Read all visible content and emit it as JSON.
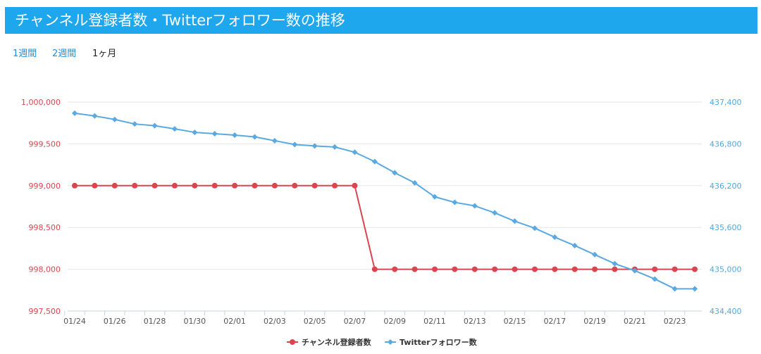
{
  "header": {
    "title": "チャンネル登録者数・Twitterフォロワー数の推移"
  },
  "range_tabs": [
    {
      "label": "1週間",
      "active": false
    },
    {
      "label": "2週間",
      "active": false
    },
    {
      "label": "1ヶ月",
      "active": true
    }
  ],
  "colors": {
    "header_bg": "#1fa7ee",
    "series_subscribers": "#d9464f",
    "series_followers": "#5aa9e0",
    "left_axis_text": "#d9464f",
    "right_axis_text": "#4fa9e3",
    "grid": "#e6e6e6",
    "active_tab": "#222222",
    "inactive_tab": "#1f8fe0"
  },
  "chart_data": {
    "type": "line",
    "x": [
      "01/24",
      "01/25",
      "01/26",
      "01/27",
      "01/28",
      "01/29",
      "01/30",
      "01/31",
      "02/01",
      "02/02",
      "02/03",
      "02/04",
      "02/05",
      "02/06",
      "02/07",
      "02/08",
      "02/09",
      "02/10",
      "02/11",
      "02/12",
      "02/13",
      "02/14",
      "02/15",
      "02/16",
      "02/17",
      "02/18",
      "02/19",
      "02/20",
      "02/21",
      "02/22",
      "02/23",
      "02/24"
    ],
    "x_tick_labels": [
      "01/24",
      "01/26",
      "01/28",
      "01/30",
      "02/01",
      "02/03",
      "02/05",
      "02/07",
      "02/09",
      "02/11",
      "02/13",
      "02/15",
      "02/17",
      "02/19",
      "02/21",
      "02/23"
    ],
    "series": [
      {
        "name": "チャンネル登録者数",
        "axis": "left",
        "values": [
          999000,
          999000,
          999000,
          999000,
          999000,
          999000,
          999000,
          999000,
          999000,
          999000,
          999000,
          999000,
          999000,
          999000,
          999000,
          998000,
          998000,
          998000,
          998000,
          998000,
          998000,
          998000,
          998000,
          998000,
          998000,
          998000,
          998000,
          998000,
          998000,
          998000,
          998000,
          998000
        ]
      },
      {
        "name": "Twitterフォロワー数",
        "axis": "right",
        "values": [
          437240,
          437200,
          437150,
          437085,
          437060,
          437015,
          436965,
          436945,
          436925,
          436900,
          436845,
          436790,
          436770,
          436755,
          436680,
          436545,
          436385,
          436240,
          436040,
          435960,
          435910,
          435810,
          435690,
          435590,
          435460,
          435340,
          435210,
          435080,
          434980,
          434860,
          434720,
          434720
        ]
      }
    ],
    "left_axis": {
      "min": 997500,
      "max": 1000000,
      "ticks": [
        "997,500",
        "998,000",
        "998,500",
        "999,000",
        "999,500",
        "1,000,000"
      ]
    },
    "right_axis": {
      "min": 434400,
      "max": 437400,
      "ticks": [
        "434,400",
        "435,000",
        "435,600",
        "436,200",
        "436,800",
        "437,400"
      ]
    },
    "grid": true,
    "legend_position": "bottom-center"
  }
}
